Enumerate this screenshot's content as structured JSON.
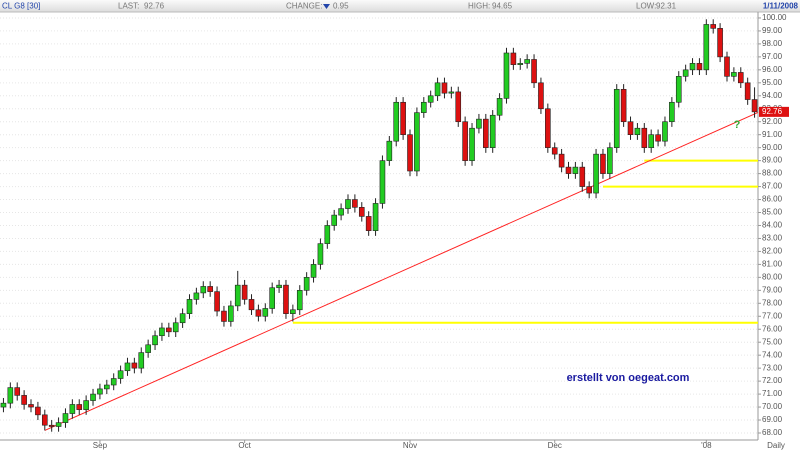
{
  "chart_data": {
    "type": "candlestick",
    "header": {
      "symbol": "CL G8 [30]",
      "last_label": "LAST:",
      "change_label": "CHANGE:",
      "change": 0.95,
      "change_direction": "down",
      "high_label": "HIGH:",
      "low_label": "LOW:",
      "date": "1/11/2008"
    },
    "interval": "Daily",
    "annotations": [
      "?",
      "erstellt von oegeat.com"
    ],
    "up_color": "#22cc22",
    "down_color": "#dd1111",
    "ylim": [
      67.46,
      100.46
    ],
    "yticks": [
      {
        "value": 68,
        "label": "68.00"
      },
      {
        "value": 69,
        "label": "69.00"
      },
      {
        "value": 70,
        "label": "70.00"
      },
      {
        "value": 71,
        "label": "71.00"
      },
      {
        "value": 72,
        "label": "72.00"
      },
      {
        "value": 73,
        "label": "73.00"
      },
      {
        "value": 74,
        "label": "74.00"
      },
      {
        "value": 75,
        "label": "75.00"
      },
      {
        "value": 76,
        "label": "76.00"
      },
      {
        "value": 77,
        "label": "77.00"
      },
      {
        "value": 78,
        "label": "78.00"
      },
      {
        "value": 79,
        "label": "79.00"
      },
      {
        "value": 80,
        "label": "80.00"
      },
      {
        "value": 81,
        "label": "81.00"
      },
      {
        "value": 82,
        "label": "82.00"
      },
      {
        "value": 83,
        "label": "83.00"
      },
      {
        "value": 84,
        "label": "84.00"
      },
      {
        "value": 85,
        "label": "85.00"
      },
      {
        "value": 86,
        "label": "86.00"
      },
      {
        "value": 87,
        "label": "87.00"
      },
      {
        "value": 88,
        "label": "88.00"
      },
      {
        "value": 89,
        "label": "89.00"
      },
      {
        "value": 90,
        "label": "90.00"
      },
      {
        "value": 91,
        "label": "91.00"
      },
      {
        "value": 92,
        "label": "92.00"
      },
      {
        "value": 93,
        "label": "93.00"
      },
      {
        "value": 94,
        "label": "94.00"
      },
      {
        "value": 95,
        "label": "95.00"
      },
      {
        "value": 96,
        "label": "96.00"
      },
      {
        "value": 97,
        "label": "97.00"
      },
      {
        "value": 98,
        "label": "98.00"
      },
      {
        "value": 99,
        "label": "99.00"
      },
      {
        "value": 100,
        "label": "100.00"
      }
    ],
    "grid": true,
    "levels": [
      {
        "value": 76.5,
        "start": 42,
        "color": "#ffff00"
      },
      {
        "value": 89.0,
        "start": 93,
        "color": "#ffff00"
      },
      {
        "value": 87.0,
        "start": 87,
        "color": "#ffff00"
      }
    ],
    "trendline": {
      "start": [
        6,
        68.2
      ],
      "end": [
        109,
        92.6
      ],
      "color": "#ff2222"
    },
    "categories": [
      null,
      null,
      null,
      null,
      null,
      null,
      null,
      null,
      null,
      null,
      null,
      null,
      null,
      null,
      "Sep",
      null,
      null,
      null,
      null,
      null,
      null,
      null,
      null,
      null,
      null,
      null,
      null,
      null,
      null,
      null,
      null,
      null,
      null,
      null,
      null,
      "Oct",
      null,
      null,
      null,
      null,
      null,
      null,
      null,
      null,
      null,
      null,
      null,
      null,
      null,
      null,
      null,
      null,
      null,
      null,
      null,
      null,
      null,
      null,
      null,
      "Nov",
      null,
      null,
      null,
      null,
      null,
      null,
      null,
      null,
      null,
      null,
      null,
      null,
      null,
      null,
      null,
      null,
      null,
      null,
      null,
      null,
      "Dec",
      null,
      null,
      null,
      null,
      null,
      null,
      null,
      null,
      null,
      null,
      null,
      null,
      null,
      null,
      null,
      null,
      null,
      null,
      null,
      null,
      null,
      "'08",
      null,
      null,
      null,
      null,
      null,
      null,
      null
    ],
    "open": [
      70.0,
      70.3,
      71.5,
      70.9,
      70.2,
      70.0,
      69.4,
      68.6,
      68.5,
      68.8,
      69.5,
      70.2,
      69.8,
      70.5,
      71.0,
      71.4,
      71.7,
      72.2,
      72.8,
      73.4,
      73.0,
      74.2,
      74.8,
      75.5,
      76.1,
      75.8,
      76.5,
      77.2,
      78.3,
      78.8,
      79.3,
      78.9,
      77.4,
      76.6,
      77.8,
      79.4,
      78.3,
      77.5,
      77.0,
      77.6,
      79.2,
      79.4,
      77.2,
      77.5,
      79.0,
      80.0,
      81.0,
      82.6,
      84.0,
      84.8,
      85.3,
      86.0,
      85.4,
      84.7,
      83.6,
      85.7,
      89.0,
      90.5,
      93.5,
      91.0,
      88.2,
      92.7,
      93.5,
      94.0,
      95.0,
      94.2,
      94.3,
      92.0,
      89.0,
      91.5,
      92.2,
      90.0,
      92.5,
      93.8,
      97.3,
      96.4,
      96.5,
      96.8,
      95.0,
      93.0,
      90.0,
      89.5,
      88.5,
      88.0,
      88.5,
      87.0,
      86.5,
      89.5,
      88.0,
      90.0,
      94.5,
      92.0,
      91.0,
      91.5,
      90.0,
      91.0,
      90.5,
      92.0,
      93.5,
      95.5,
      96.0,
      96.5,
      96.0,
      99.5,
      99.2,
      97.0,
      95.5,
      95.8,
      95.0,
      93.71
    ],
    "high": [
      70.7,
      71.9,
      71.9,
      71.3,
      70.6,
      70.4,
      69.8,
      69.0,
      69.2,
      69.9,
      70.6,
      70.6,
      70.9,
      71.4,
      71.8,
      72.1,
      72.6,
      73.2,
      73.8,
      73.8,
      74.6,
      75.2,
      75.9,
      76.5,
      76.5,
      76.9,
      77.6,
      78.7,
      79.2,
      79.7,
      79.7,
      79.3,
      77.8,
      78.2,
      80.5,
      79.8,
      78.7,
      77.9,
      78.0,
      79.6,
      79.8,
      79.8,
      77.9,
      79.4,
      80.4,
      81.4,
      83.0,
      84.4,
      85.2,
      85.7,
      86.4,
      86.4,
      85.8,
      85.1,
      86.1,
      89.4,
      90.9,
      93.9,
      93.9,
      91.4,
      93.1,
      93.9,
      94.4,
      95.4,
      95.4,
      94.7,
      94.7,
      92.4,
      91.9,
      92.6,
      92.6,
      92.9,
      94.2,
      97.7,
      97.7,
      96.9,
      97.2,
      97.2,
      95.4,
      93.4,
      90.4,
      89.9,
      88.9,
      88.9,
      88.9,
      87.4,
      89.9,
      89.9,
      90.4,
      94.9,
      94.9,
      92.4,
      91.9,
      91.9,
      91.4,
      91.4,
      92.4,
      93.9,
      95.9,
      96.4,
      96.9,
      96.9,
      99.9,
      99.9,
      99.6,
      97.4,
      96.2,
      96.2,
      95.4,
      94.65
    ],
    "low": [
      69.6,
      69.9,
      70.5,
      69.8,
      69.6,
      69.0,
      68.2,
      68.1,
      68.1,
      68.4,
      69.1,
      69.4,
      69.4,
      70.1,
      70.6,
      71.0,
      71.3,
      71.8,
      72.4,
      72.6,
      72.6,
      73.8,
      74.4,
      75.1,
      75.4,
      75.4,
      76.1,
      76.8,
      77.9,
      78.4,
      78.5,
      77.0,
      76.2,
      76.2,
      77.4,
      77.9,
      77.1,
      76.6,
      76.6,
      77.2,
      78.8,
      76.8,
      76.6,
      77.1,
      78.6,
      79.6,
      80.6,
      82.2,
      83.6,
      84.4,
      84.9,
      85.0,
      84.3,
      83.2,
      83.2,
      85.3,
      88.6,
      90.1,
      90.6,
      87.8,
      87.8,
      92.3,
      93.1,
      93.6,
      93.8,
      93.8,
      91.6,
      88.6,
      88.6,
      91.1,
      89.6,
      89.6,
      92.1,
      93.4,
      96.0,
      96.0,
      96.1,
      94.6,
      92.6,
      89.6,
      89.1,
      88.1,
      87.6,
      87.6,
      86.6,
      86.1,
      86.1,
      87.6,
      87.6,
      89.6,
      91.6,
      90.6,
      90.6,
      89.6,
      89.6,
      90.1,
      90.1,
      91.6,
      93.1,
      95.1,
      95.6,
      95.6,
      95.6,
      98.8,
      96.6,
      95.1,
      95.1,
      94.6,
      93.3,
      92.31
    ],
    "close": [
      70.3,
      71.5,
      70.9,
      70.2,
      70.0,
      69.4,
      68.6,
      68.5,
      68.8,
      69.5,
      70.2,
      69.8,
      70.5,
      71.0,
      71.4,
      71.7,
      72.2,
      72.8,
      73.4,
      73.0,
      74.2,
      74.8,
      75.5,
      76.1,
      75.8,
      76.5,
      77.2,
      78.3,
      78.8,
      79.3,
      78.9,
      77.4,
      76.6,
      77.8,
      79.4,
      78.3,
      77.5,
      77.0,
      77.6,
      79.2,
      79.4,
      77.2,
      77.5,
      79.0,
      80.0,
      81.0,
      82.6,
      84.0,
      84.8,
      85.3,
      86.0,
      85.4,
      84.7,
      83.6,
      85.7,
      89.0,
      90.5,
      93.5,
      91.0,
      88.2,
      92.7,
      93.5,
      94.0,
      95.0,
      94.2,
      94.3,
      92.0,
      89.0,
      91.5,
      92.2,
      90.0,
      92.5,
      93.8,
      97.3,
      96.4,
      96.5,
      96.8,
      95.0,
      93.0,
      90.0,
      89.5,
      88.5,
      88.0,
      88.5,
      87.0,
      86.5,
      89.5,
      88.0,
      90.0,
      94.5,
      92.0,
      91.0,
      91.5,
      90.0,
      91.0,
      90.5,
      92.0,
      93.5,
      95.5,
      96.0,
      96.5,
      96.0,
      99.5,
      99.2,
      97.0,
      95.5,
      95.8,
      95.0,
      93.71,
      92.76
    ]
  }
}
